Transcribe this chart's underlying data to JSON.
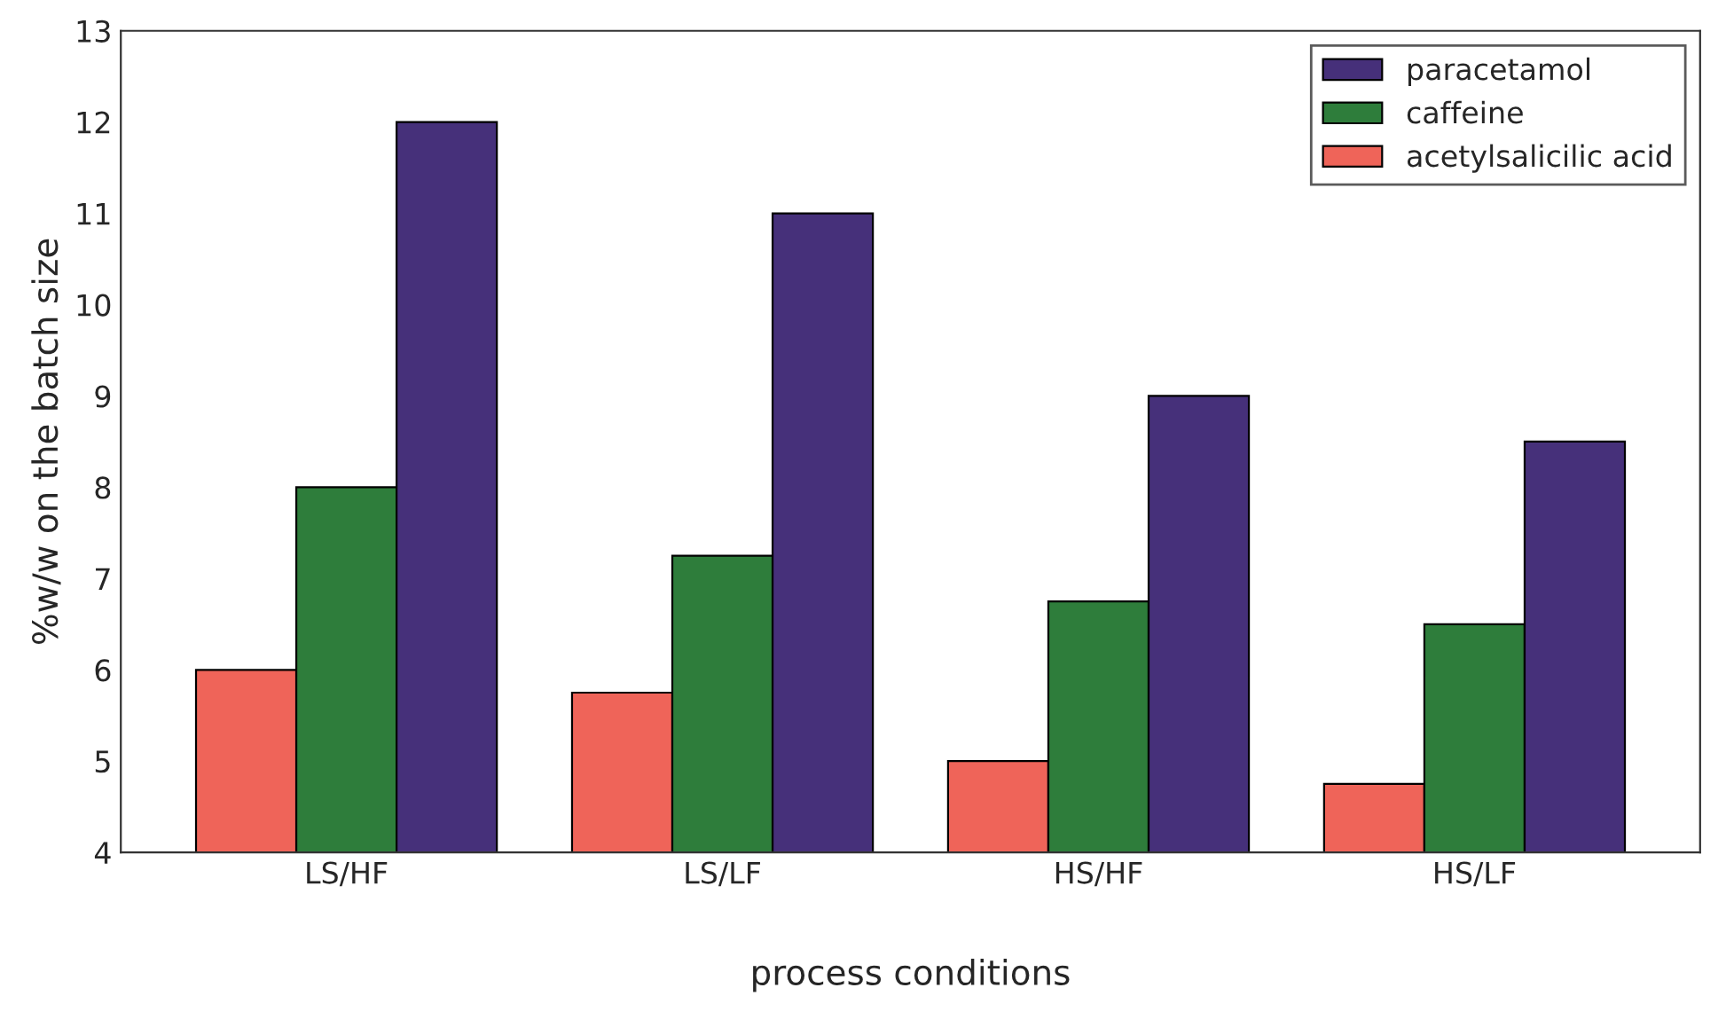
{
  "chart_data": {
    "type": "bar",
    "xlabel": "process conditions",
    "ylabel": "%w/w on the batch size",
    "categories": [
      "LS/HF",
      "LS/LF",
      "HS/HF",
      "HS/LF"
    ],
    "series": [
      {
        "name": "acetylsalicilic acid",
        "color": "#ef6459",
        "values": [
          6,
          5.75,
          5,
          4.75
        ]
      },
      {
        "name": "caffeine",
        "color": "#2e7d3b",
        "values": [
          8,
          7.25,
          6.75,
          6.5
        ]
      },
      {
        "name": "paracetamol",
        "color": "#46307a",
        "values": [
          12,
          11,
          9,
          8.5
        ]
      }
    ],
    "ylim": [
      4,
      13
    ],
    "yticks": [
      4,
      5,
      6,
      7,
      8,
      9,
      10,
      11,
      12,
      13
    ],
    "grid": false,
    "legend": "top right"
  }
}
